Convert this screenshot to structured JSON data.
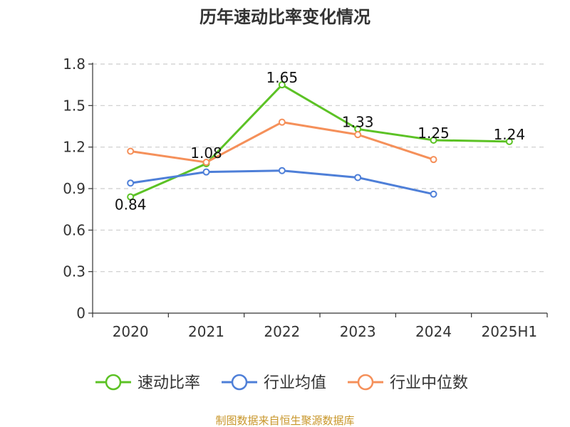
{
  "chart_data": {
    "type": "line",
    "title": "历年速动比率变化情况",
    "categories": [
      "2020",
      "2021",
      "2022",
      "2023",
      "2024",
      "2025H1"
    ],
    "ylim": [
      0,
      1.8
    ],
    "yticks": [
      "0",
      "0.3",
      "0.6",
      "0.9",
      "1.2",
      "1.5",
      "1.8"
    ],
    "grid": true,
    "legend_position": "bottom",
    "series": [
      {
        "name": "速动比率",
        "color": "#5cc225",
        "values": [
          0.84,
          1.08,
          1.65,
          1.33,
          1.25,
          1.24
        ],
        "labels": [
          "0.84",
          "1.08",
          "1.65",
          "1.33",
          "1.25",
          "1.24"
        ]
      },
      {
        "name": "行业均值",
        "color": "#4e7fd8",
        "values": [
          0.94,
          1.02,
          1.03,
          0.98,
          0.86,
          null
        ]
      },
      {
        "name": "行业中位数",
        "color": "#f5905a",
        "values": [
          1.17,
          1.09,
          1.38,
          1.29,
          1.11,
          null
        ]
      }
    ],
    "source": "制图数据来自恒生聚源数据库"
  }
}
